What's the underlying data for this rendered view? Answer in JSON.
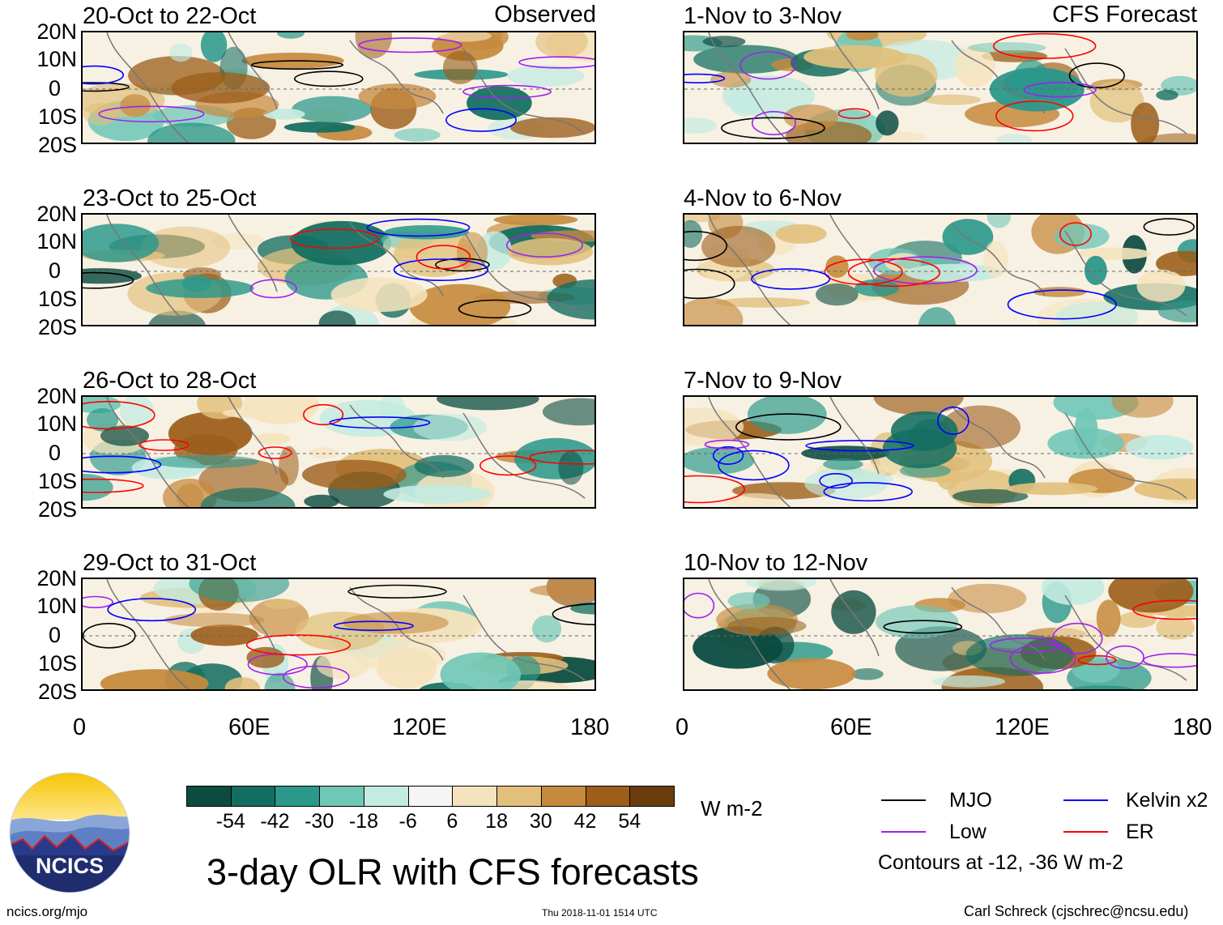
{
  "observed_label": "Observed",
  "forecast_label": "CFS Forecast",
  "left_panels": [
    {
      "title": "20-Oct to 22-Oct"
    },
    {
      "title": "23-Oct to 25-Oct"
    },
    {
      "title": "26-Oct to 28-Oct"
    },
    {
      "title": "29-Oct to 31-Oct"
    }
  ],
  "right_panels": [
    {
      "title": "1-Nov to 3-Nov"
    },
    {
      "title": "4-Nov to 6-Nov"
    },
    {
      "title": "7-Nov to 9-Nov"
    },
    {
      "title": "10-Nov to 12-Nov"
    }
  ],
  "lat_labels": [
    "20N",
    "10N",
    "0",
    "10S",
    "20S"
  ],
  "lon_labels": [
    "0",
    "60E",
    "120E",
    "180"
  ],
  "colorbar": {
    "units": "W m-2",
    "tick_labels": [
      "-54",
      "-42",
      "-30",
      "-18",
      "-6",
      "6",
      "18",
      "30",
      "42",
      "54"
    ],
    "colors": [
      "#0b4b40",
      "#136e61",
      "#2a988a",
      "#6fc7b7",
      "#c3ebe1",
      "#f5f5f5",
      "#f5e3bd",
      "#e2c07c",
      "#c68a3e",
      "#9c5e1a",
      "#6a3d0c"
    ]
  },
  "title": "3-day OLR with CFS forecasts",
  "legend": {
    "items": [
      {
        "label": "MJO",
        "color": "#000000"
      },
      {
        "label": "Kelvin x2",
        "color": "#0000ff"
      },
      {
        "label": "Low",
        "color": "#a020f0"
      },
      {
        "label": "ER",
        "color": "#ff0000"
      }
    ],
    "note": "Contours at -12, -36 W m-2"
  },
  "logo_text": "NCICS",
  "website": "ncics.org/mjo",
  "timestamp": "Thu 2018-11-01 1514 UTC",
  "credit": "Carl Schreck (cjschrec@ncsu.edu)"
}
